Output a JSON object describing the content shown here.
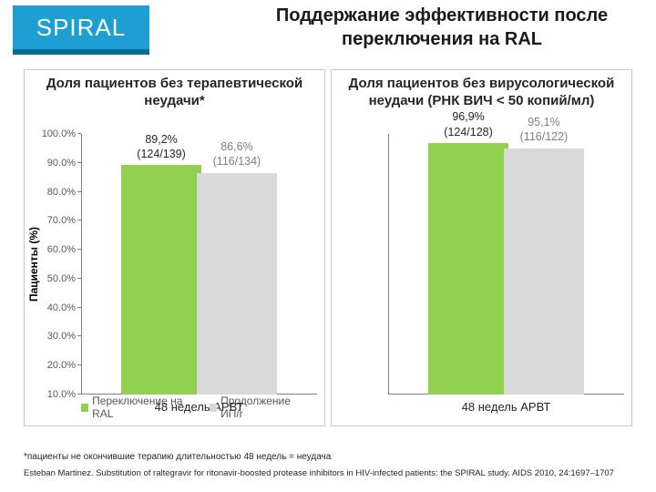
{
  "header": {
    "badge": "SPIRAL",
    "badge_bg": "#1d9fd4",
    "badge_shadow": "#0d6a92",
    "badge_color": "#ffffff",
    "title": "Поддержание эффективности после переключения на RAL",
    "title_color": "#1a1a1a"
  },
  "charts": {
    "ylabel": "Пациенты (%)",
    "ylim": [
      10,
      100
    ],
    "ytick_step": 10,
    "ytick_suffix": ".0%",
    "bar_colors": [
      "#92d050",
      "#d9d9d9"
    ],
    "bar_width_pct": 34,
    "panel_border": "#c8c8c8",
    "axis_color": "#808080",
    "left": {
      "title": "Доля пациентов без терапевтической неудачи*",
      "x_category": "48 недель АРВТ",
      "bars": [
        {
          "value": 89.2,
          "label_line1": "89,2%",
          "label_line2": "(124/139)",
          "label_color": "#262626"
        },
        {
          "value": 86.6,
          "label_line1": "86,6%",
          "label_line2": "(116/134)",
          "label_color": "#808080"
        }
      ],
      "legend": [
        {
          "swatch": "#92d050",
          "text": "Переключение на RAL"
        },
        {
          "swatch": "#d9d9d9",
          "text": "Продолжение ИП/r"
        }
      ]
    },
    "right": {
      "title": "Доля пациентов без вирусологической неудачи (РНК ВИЧ < 50 копий/мл)",
      "x_category": "48 недель АРВТ",
      "bars": [
        {
          "value": 96.9,
          "label_line1": "96,9%",
          "label_line2": "(124/128)",
          "label_color": "#262626"
        },
        {
          "value": 95.1,
          "label_line1": "95,1%",
          "label_line2": "(116/122)",
          "label_color": "#808080"
        }
      ]
    }
  },
  "footnotes": {
    "line1": "*пациенты не окончившие терапию длительностью 48 недель = неудача",
    "line2": "Esteban Martinez. Substitution of raltegravir for ritonavir-boosted protease inhibitors in HIV-infected patients: the SPIRAL study. AIDS 2010, 24:1697–1707"
  }
}
